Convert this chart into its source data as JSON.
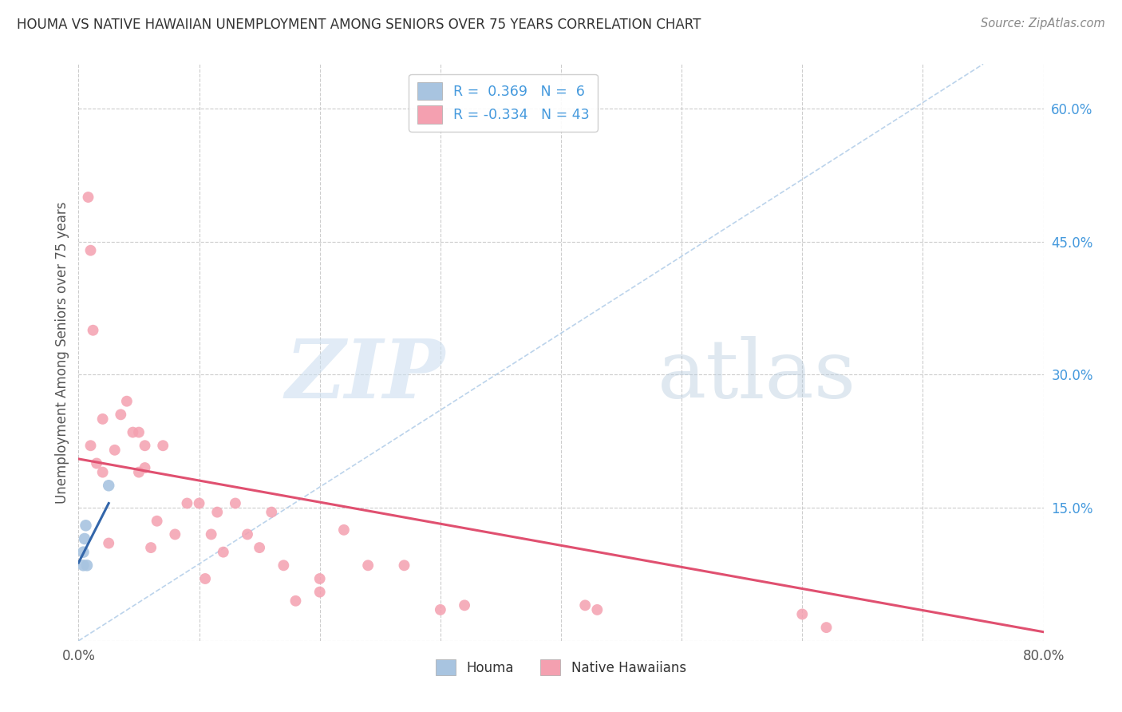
{
  "title": "HOUMA VS NATIVE HAWAIIAN UNEMPLOYMENT AMONG SENIORS OVER 75 YEARS CORRELATION CHART",
  "source": "Source: ZipAtlas.com",
  "ylabel": "Unemployment Among Seniors over 75 years",
  "xlim": [
    0.0,
    0.8
  ],
  "ylim": [
    0.0,
    0.65
  ],
  "xtick_positions": [
    0.0,
    0.1,
    0.2,
    0.3,
    0.4,
    0.5,
    0.6,
    0.7,
    0.8
  ],
  "xticklabels": [
    "0.0%",
    "",
    "",
    "",
    "",
    "",
    "",
    "",
    "80.0%"
  ],
  "ytick_positions": [
    0.0,
    0.15,
    0.3,
    0.45,
    0.6
  ],
  "yticklabels_right": [
    "",
    "15.0%",
    "30.0%",
    "45.0%",
    "60.0%"
  ],
  "houma_x": [
    0.004,
    0.004,
    0.005,
    0.006,
    0.007,
    0.025
  ],
  "houma_y": [
    0.085,
    0.1,
    0.115,
    0.13,
    0.085,
    0.175
  ],
  "native_hawaiian_x": [
    0.008,
    0.01,
    0.01,
    0.012,
    0.015,
    0.02,
    0.02,
    0.025,
    0.03,
    0.035,
    0.04,
    0.045,
    0.05,
    0.05,
    0.055,
    0.055,
    0.06,
    0.065,
    0.07,
    0.08,
    0.09,
    0.1,
    0.105,
    0.11,
    0.115,
    0.12,
    0.13,
    0.14,
    0.15,
    0.16,
    0.17,
    0.18,
    0.2,
    0.2,
    0.22,
    0.24,
    0.27,
    0.3,
    0.32,
    0.42,
    0.43,
    0.6,
    0.62
  ],
  "native_hawaiian_y": [
    0.5,
    0.44,
    0.22,
    0.35,
    0.2,
    0.19,
    0.25,
    0.11,
    0.215,
    0.255,
    0.27,
    0.235,
    0.235,
    0.19,
    0.195,
    0.22,
    0.105,
    0.135,
    0.22,
    0.12,
    0.155,
    0.155,
    0.07,
    0.12,
    0.145,
    0.1,
    0.155,
    0.12,
    0.105,
    0.145,
    0.085,
    0.045,
    0.07,
    0.055,
    0.125,
    0.085,
    0.085,
    0.035,
    0.04,
    0.04,
    0.035,
    0.03,
    0.015
  ],
  "houma_R": 0.369,
  "houma_N": 6,
  "native_hawaiian_R": -0.334,
  "native_hawaiian_N": 43,
  "houma_color": "#a8c4e0",
  "houma_line_color": "#3366aa",
  "native_hawaiian_color": "#f4a0b0",
  "native_hawaiian_line_color": "#e05070",
  "diagonal_color": "#b0cce8",
  "background_color": "#ffffff",
  "grid_color": "#cccccc",
  "title_color": "#333333",
  "source_color": "#888888",
  "right_axis_color": "#4499dd"
}
